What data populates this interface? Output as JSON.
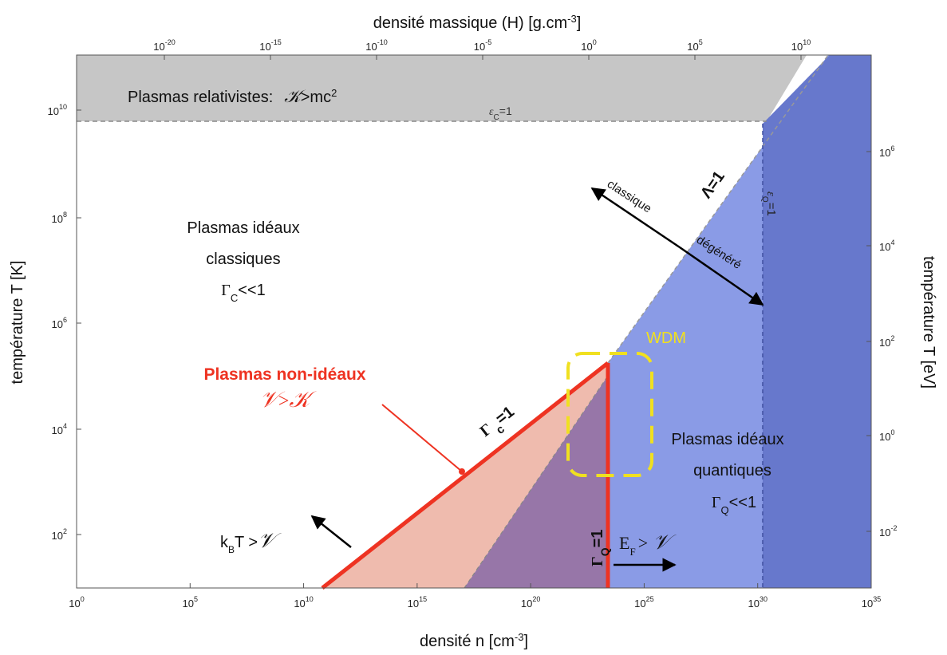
{
  "axes": {
    "bottom": {
      "title_main": "densité n [cm",
      "title_exp": "-3",
      "title_end": "]",
      "ticks": [
        {
          "base": "10",
          "exp": "0"
        },
        {
          "base": "10",
          "exp": "5"
        },
        {
          "base": "10",
          "exp": "10"
        },
        {
          "base": "10",
          "exp": "15"
        },
        {
          "base": "10",
          "exp": "20"
        },
        {
          "base": "10",
          "exp": "25"
        },
        {
          "base": "10",
          "exp": "30"
        },
        {
          "base": "10",
          "exp": "35"
        }
      ]
    },
    "top": {
      "title_main": "densité massique (H) [g.cm",
      "title_exp": "-3",
      "title_end": "]",
      "ticks": [
        {
          "base": "10",
          "exp": "-20"
        },
        {
          "base": "10",
          "exp": "-15"
        },
        {
          "base": "10",
          "exp": "-10"
        },
        {
          "base": "10",
          "exp": "-5"
        },
        {
          "base": "10",
          "exp": "0"
        },
        {
          "base": "10",
          "exp": "5"
        },
        {
          "base": "10",
          "exp": "10"
        }
      ]
    },
    "left": {
      "title": "température T [K]",
      "ticks": [
        {
          "base": "10",
          "exp": "10"
        },
        {
          "base": "10",
          "exp": "8"
        },
        {
          "base": "10",
          "exp": "6"
        },
        {
          "base": "10",
          "exp": "4"
        },
        {
          "base": "10",
          "exp": "2"
        }
      ]
    },
    "right": {
      "title": "température T [eV]",
      "ticks": [
        {
          "base": "10",
          "exp": "6"
        },
        {
          "base": "10",
          "exp": "4"
        },
        {
          "base": "10",
          "exp": "2"
        },
        {
          "base": "10",
          "exp": "0"
        },
        {
          "base": "10",
          "exp": "-2"
        }
      ]
    }
  },
  "labels": {
    "relativistic": "Plasmas relativistes:",
    "relativistic_K": "𝒦",
    "relativistic_rest": ">mc",
    "relativistic_sup": "2",
    "eps_c_eps": "ε",
    "eps_c_sub": "C",
    "eps_c_rest": "=1",
    "ideal_classic_1": "Plasmas idéaux",
    "ideal_classic_2": "classiques",
    "ideal_classic_gamma": "Γ",
    "ideal_classic_sub": "C",
    "ideal_classic_rest": "<<1",
    "lambda": "Λ=1",
    "eps_q_eps": "ε",
    "eps_q_sub": "Q",
    "eps_q_rest": "=1",
    "classique": "classique",
    "degenere": "dégénéré",
    "wdm": "WDM",
    "non_ideal": "Plasmas non-idéaux",
    "non_ideal_V": "𝒱",
    "non_ideal_gt": ">",
    "non_ideal_K": "𝒦",
    "gamma_c_gamma": "Γ",
    "gamma_c_sub": "c",
    "gamma_c_rest": "=1",
    "ideal_quantum_1": "Plasmas idéaux",
    "ideal_quantum_2": "quantiques",
    "ideal_quantum_gamma": "Γ",
    "ideal_quantum_sub": "Q",
    "ideal_quantum_rest": "<<1",
    "kbt_k": "k",
    "kbt_sub": "B",
    "kbt_rest": "T >",
    "kbt_V": "𝒱",
    "gamma_q_gamma": "Γ",
    "gamma_q_sub": "Q",
    "gamma_q_rest": "=1",
    "ef_e": "E",
    "ef_sub": "F",
    "ef_rest": ">",
    "ef_V": "𝒱"
  },
  "colors": {
    "relativistic": "#c6c6c6",
    "degenerate": "#8a9be6",
    "quantum_dense": "#6778cc",
    "nonideal_classic": "#efbbae",
    "nonideal_quantum": "#9776a8",
    "red": "#ee3322",
    "wdm": "#f0e020"
  }
}
